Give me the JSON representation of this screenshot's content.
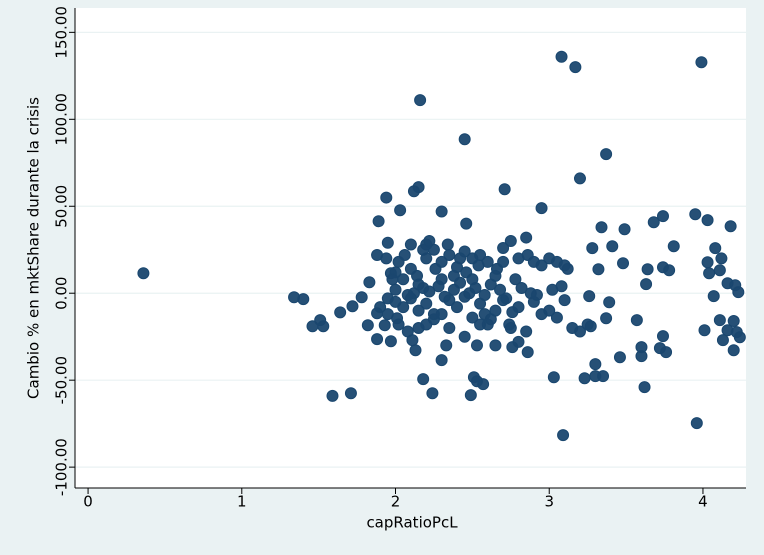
{
  "chart_data": {
    "type": "scatter",
    "x_label": "capRatioPcL",
    "y_label": "Cambio % en mktShare durante la crisis",
    "color": "#1a476f",
    "xlim": [
      -0.085,
      4.28
    ],
    "ylim": [
      -112,
      164
    ],
    "xticks": [
      0,
      1,
      2,
      3,
      4
    ],
    "yticks": [
      {
        "value": -100,
        "label": "-100.00"
      },
      {
        "value": -50,
        "label": "-50.00"
      },
      {
        "value": 0,
        "label": "0.00"
      },
      {
        "value": 50,
        "label": "50.00"
      },
      {
        "value": 100,
        "label": "100.00"
      },
      {
        "value": 150,
        "label": "150.00"
      }
    ],
    "grid": true,
    "x": [
      0.36,
      1.34,
      1.4,
      1.46,
      1.51,
      1.53,
      1.59,
      1.71,
      1.64,
      1.72,
      1.78,
      1.82,
      1.83,
      1.88,
      1.88,
      1.89,
      1.94,
      1.95,
      1.94,
      1.97,
      1.97,
      1.93,
      2.01,
      2.03,
      2.16,
      2.15,
      2.12,
      2.11,
      2.13,
      2.18,
      2.24,
      2.3,
      2.45,
      2.3,
      2.33,
      2.49,
      2.51,
      2.53,
      2.57,
      2.53,
      2.46,
      2.71,
      2.76,
      2.76,
      2.86,
      2.95,
      3.03,
      3.08,
      3.17,
      3.09,
      3.2,
      3.37,
      3.23,
      3.3,
      3.35,
      3.3,
      3.27,
      3.26,
      3.28,
      3.32,
      3.34,
      3.39,
      3.37,
      3.41,
      3.46,
      3.49,
      3.48,
      3.57,
      3.6,
      3.6,
      3.62,
      3.63,
      3.64,
      3.68,
      3.74,
      3.74,
      3.78,
      3.81,
      3.72,
      3.76,
      3.74,
      3.95,
      3.99,
      3.96,
      4.03,
      4.01,
      4.03,
      4.04,
      4.08,
      4.07,
      4.12,
      4.11,
      4.11,
      4.13,
      4.16,
      4.16,
      4.18,
      4.2,
      4.2,
      4.21,
      4.22,
      4.23,
      4.24,
      2.0,
      2.05,
      2.1,
      2.15,
      2.2,
      2.25,
      2.2,
      2.3,
      2.35,
      2.4,
      2.45,
      2.5,
      2.55,
      2.6,
      2.65,
      2.7,
      2.75,
      2.8,
      2.85,
      2.9,
      2.95,
      3.0,
      3.05,
      3.1,
      3.12,
      2.0,
      2.05,
      2.1,
      2.15,
      2.2,
      2.25,
      2.3,
      2.35,
      2.4,
      2.45,
      2.5,
      2.55,
      2.6,
      2.65,
      2.7,
      2.75,
      2.8,
      2.85,
      2.9,
      2.95,
      3.0,
      3.05,
      3.1,
      3.15,
      3.2,
      3.25,
      2.0,
      2.08,
      2.12,
      2.18,
      2.22,
      2.28,
      2.32,
      2.38,
      2.42,
      2.48,
      2.52,
      2.58,
      2.62,
      2.68,
      2.72,
      2.78,
      2.82,
      2.88,
      2.92,
      3.02,
      3.08,
      1.9,
      1.95,
      1.98,
      2.02,
      2.06,
      2.1,
      2.14,
      2.18,
      2.22,
      2.26,
      2.3,
      2.34,
      2.38,
      2.42,
      2.46,
      2.5,
      2.54,
      2.58,
      2.62,
      2.66,
      2.7,
      2.74,
      2.8,
      2.86,
      1.88,
      1.95,
      2.02,
      2.08,
      2.15,
      2.2,
      2.25,
      2.35,
      2.45,
      2.55,
      2.65
    ],
    "values": [
      11.5,
      -2.3,
      -3.4,
      -19,
      -15.5,
      -19,
      -59,
      -57.5,
      -11,
      -7.5,
      -2.3,
      -18.4,
      6.3,
      -11.5,
      -26.4,
      41.4,
      55,
      29,
      20,
      11.5,
      -27.6,
      -18.4,
      -14.4,
      47.7,
      111,
      61,
      58.6,
      -27,
      -32.8,
      -49.4,
      -57.5,
      47,
      88.5,
      -38.5,
      -30,
      -58.6,
      -48.3,
      -50.6,
      -52.3,
      -30,
      40,
      59.8,
      -10.9,
      -31,
      -33.9,
      48.9,
      -48.3,
      136,
      130,
      -81.6,
      66,
      80,
      -48.9,
      -47.7,
      -47.7,
      -40.8,
      -19,
      -1.7,
      25.9,
      13.8,
      37.9,
      -5.2,
      -14.4,
      27,
      -36.8,
      36.8,
      17.2,
      -15.5,
      -36.2,
      -31,
      -54,
      5.2,
      13.8,
      40.8,
      44.3,
      14.9,
      13.2,
      27,
      -31.6,
      -33.9,
      -24.7,
      45.4,
      132.8,
      -74.7,
      42,
      -21.3,
      17.8,
      11.5,
      25.9,
      -1.7,
      20,
      13.2,
      -15.5,
      -27,
      -21.3,
      5.7,
      38.5,
      -32.8,
      -16,
      4.6,
      -22.4,
      0.6,
      -25.3,
      12,
      8,
      14,
      5,
      20,
      25,
      28,
      18,
      22,
      15,
      24,
      20,
      22,
      18,
      10,
      26,
      30,
      20,
      32,
      18,
      16,
      20,
      18,
      16,
      14,
      -5,
      -8,
      -3,
      -10,
      -6,
      -15,
      -12,
      -4,
      -8,
      -2,
      -14,
      -6,
      -18,
      -10,
      -4,
      -20,
      -8,
      -22,
      -5,
      -12,
      -10,
      -14,
      -4,
      -20,
      -22,
      -18,
      2,
      -1,
      0,
      3,
      1,
      4,
      -2,
      2,
      6,
      0,
      3,
      -1,
      5,
      2,
      -3,
      8,
      3,
      0,
      -1,
      2,
      4,
      -8,
      -3,
      8,
      18,
      22,
      28,
      10,
      25,
      30,
      14,
      8,
      28,
      10,
      20,
      12,
      8,
      16,
      -12,
      -15,
      14,
      18,
      -18,
      -28,
      22,
      22,
      -12,
      -18,
      -22,
      -20,
      -18,
      -12,
      -20,
      -25,
      -18,
      -30
    ]
  }
}
